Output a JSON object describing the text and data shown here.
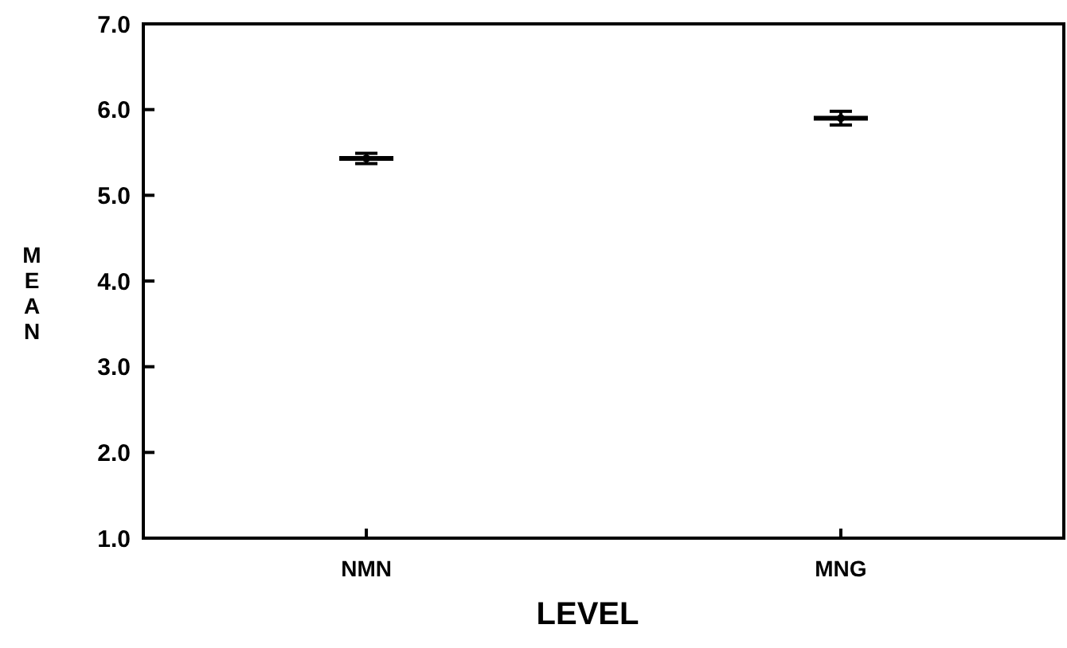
{
  "chart_data": {
    "type": "scatter",
    "xlabel": "LEVEL",
    "ylabel": "MEAN",
    "categories": [
      "NMN",
      "MNG"
    ],
    "values": [
      5.43,
      5.9
    ],
    "errors": [
      0.06,
      0.08
    ],
    "color": "#000000",
    "ylim": [
      1.0,
      7.0
    ],
    "yticks": [
      {
        "value": 1,
        "label": "1.0"
      },
      {
        "value": 2,
        "label": "2.0"
      },
      {
        "value": 3,
        "label": "3.0"
      },
      {
        "value": 4,
        "label": "4.0"
      },
      {
        "value": 5,
        "label": "5.0"
      },
      {
        "value": 6,
        "label": "6.0"
      },
      {
        "value": 7,
        "label": "7.0"
      }
    ]
  }
}
